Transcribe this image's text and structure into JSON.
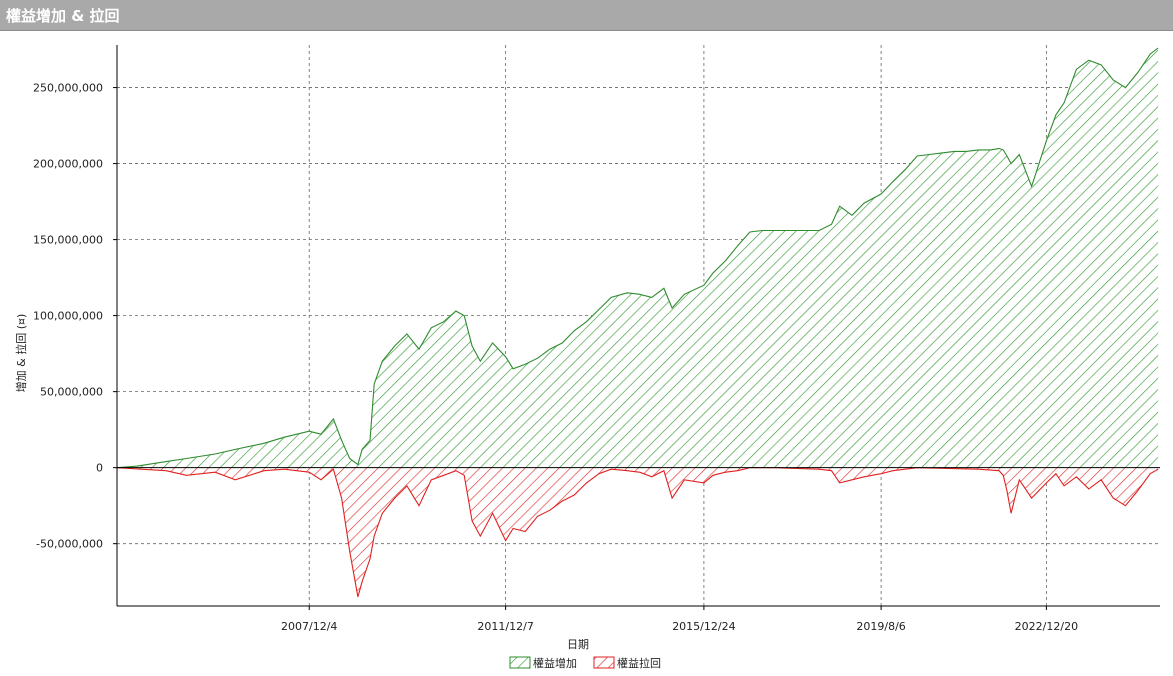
{
  "window": {
    "title": "權益增加 & 拉回"
  },
  "chart_data": {
    "type": "area",
    "title": "",
    "xlabel": "日期",
    "ylabel": "增加 & 拉回 (¤)",
    "ylim": [
      -91000000,
      278000000
    ],
    "xlim": [
      "2004/1/1",
      "2025/4/15"
    ],
    "grid": true,
    "yticks": [
      -50000000,
      0,
      50000000,
      100000000,
      150000000,
      200000000,
      250000000
    ],
    "ytick_labels": [
      "-50,000,000",
      "0",
      "50,000,000",
      "100,000,000",
      "150,000,000",
      "200,000,000",
      "250,000,000"
    ],
    "xticks": [
      "2007/12/4",
      "2011/12/7",
      "2015/12/24",
      "2019/8/6",
      "2022/12/20"
    ],
    "legend_position": "bottom-center",
    "series": [
      {
        "name": "權益增加",
        "color": "#2e8b2e",
        "x": [
          "2004/1/1",
          "2004/6/1",
          "2005/1/1",
          "2005/6/1",
          "2006/1/1",
          "2006/6/1",
          "2007/1/1",
          "2007/6/1",
          "2007/12/4",
          "2008/3/1",
          "2008/6/1",
          "2008/8/1",
          "2008/10/1",
          "2008/12/1",
          "2009/1/1",
          "2009/3/1",
          "2009/4/1",
          "2009/6/1",
          "2009/9/1",
          "2009/12/1",
          "2010/3/1",
          "2010/6/1",
          "2010/9/1",
          "2010/12/1",
          "2011/2/1",
          "2011/4/1",
          "2011/6/1",
          "2011/9/1",
          "2011/12/7",
          "2012/2/1",
          "2012/5/1",
          "2012/8/1",
          "2012/11/1",
          "2013/2/1",
          "2013/5/1",
          "2013/8/1",
          "2013/11/1",
          "2014/2/1",
          "2014/6/1",
          "2014/9/1",
          "2014/12/1",
          "2015/3/1",
          "2015/5/1",
          "2015/8/1",
          "2015/12/24",
          "2016/3/1",
          "2016/6/1",
          "2016/9/1",
          "2016/12/1",
          "2017/3/1",
          "2017/6/1",
          "2017/9/1",
          "2017/12/1",
          "2018/2/1",
          "2018/5/1",
          "2018/8/1",
          "2018/10/1",
          "2019/1/1",
          "2019/4/1",
          "2019/8/6",
          "2019/11/1",
          "2020/2/1",
          "2020/5/1",
          "2020/8/1",
          "2020/11/1",
          "2021/2/1",
          "2021/5/1",
          "2021/8/1",
          "2021/11/1",
          "2022/1/1",
          "2022/2/1",
          "2022/3/1",
          "2022/4/1",
          "2022/6/1",
          "2022/9/1",
          "2022/12/20",
          "2023/3/1",
          "2023/5/1",
          "2023/8/1",
          "2023/11/1",
          "2024/2/1",
          "2024/5/1",
          "2024/8/1",
          "2024/11/1",
          "2025/2/1",
          "2025/4/1"
        ],
        "values": [
          0,
          1000000,
          4000000,
          6000000,
          9000000,
          12000000,
          16000000,
          20000000,
          24000000,
          22000000,
          32000000,
          18000000,
          6000000,
          2000000,
          12000000,
          18000000,
          55000000,
          70000000,
          80000000,
          88000000,
          78000000,
          92000000,
          96000000,
          103000000,
          100000000,
          80000000,
          70000000,
          82000000,
          73000000,
          65000000,
          68000000,
          72000000,
          78000000,
          82000000,
          90000000,
          96000000,
          104000000,
          112000000,
          115000000,
          114000000,
          112000000,
          118000000,
          105000000,
          114000000,
          120000000,
          128000000,
          136000000,
          146000000,
          155000000,
          156000000,
          156000000,
          156000000,
          156000000,
          156000000,
          156000000,
          160000000,
          172000000,
          166000000,
          174000000,
          180000000,
          188000000,
          196000000,
          205000000,
          206000000,
          207000000,
          208000000,
          208000000,
          209000000,
          209000000,
          210000000,
          209000000,
          205000000,
          200000000,
          206000000,
          185000000,
          215000000,
          232000000,
          240000000,
          262000000,
          268000000,
          265000000,
          255000000,
          250000000,
          260000000,
          272000000,
          276000000
        ]
      },
      {
        "name": "權益拉回",
        "color": "#e02020",
        "x": [
          "2004/1/1",
          "2005/1/1",
          "2005/6/1",
          "2006/1/1",
          "2006/6/1",
          "2007/1/1",
          "2007/6/1",
          "2007/12/4",
          "2008/3/1",
          "2008/6/1",
          "2008/8/1",
          "2008/10/1",
          "2008/12/1",
          "2009/1/1",
          "2009/3/1",
          "2009/4/1",
          "2009/6/1",
          "2009/9/1",
          "2009/12/1",
          "2010/3/1",
          "2010/6/1",
          "2010/9/1",
          "2010/12/1",
          "2011/2/1",
          "2011/4/1",
          "2011/6/1",
          "2011/9/1",
          "2011/12/7",
          "2012/2/1",
          "2012/5/1",
          "2012/8/1",
          "2012/11/1",
          "2013/2/1",
          "2013/5/1",
          "2013/8/1",
          "2013/11/1",
          "2014/2/1",
          "2014/6/1",
          "2014/9/1",
          "2014/12/1",
          "2015/3/1",
          "2015/5/1",
          "2015/8/1",
          "2015/12/24",
          "2016/3/1",
          "2016/6/1",
          "2016/9/1",
          "2016/12/1",
          "2017/6/1",
          "2018/5/1",
          "2018/8/1",
          "2018/10/1",
          "2019/1/1",
          "2019/4/1",
          "2019/8/6",
          "2019/11/1",
          "2020/5/1",
          "2021/8/1",
          "2022/1/1",
          "2022/2/1",
          "2022/3/1",
          "2022/4/1",
          "2022/6/1",
          "2022/9/1",
          "2022/12/20",
          "2023/3/1",
          "2023/5/1",
          "2023/8/1",
          "2023/11/1",
          "2024/2/1",
          "2024/5/1",
          "2024/8/1",
          "2024/11/1",
          "2025/2/1",
          "2025/4/1"
        ],
        "values": [
          0,
          -2000000,
          -5000000,
          -3000000,
          -8000000,
          -2000000,
          -1000000,
          -3000000,
          -8000000,
          -1000000,
          -20000000,
          -55000000,
          -85000000,
          -75000000,
          -60000000,
          -45000000,
          -30000000,
          -20000000,
          -12000000,
          -25000000,
          -8000000,
          -5000000,
          -2000000,
          -5000000,
          -35000000,
          -45000000,
          -30000000,
          -48000000,
          -40000000,
          -42000000,
          -32000000,
          -28000000,
          -22000000,
          -18000000,
          -10000000,
          -4000000,
          -1000000,
          -2000000,
          -3000000,
          -6000000,
          -2000000,
          -20000000,
          -8000000,
          -10000000,
          -5000000,
          -3000000,
          -2000000,
          0,
          0,
          -1000000,
          -2000000,
          -10000000,
          -8000000,
          -6000000,
          -4000000,
          -2000000,
          0,
          -1000000,
          -2000000,
          -5000000,
          -15000000,
          -30000000,
          -8000000,
          -20000000,
          -10000000,
          -4000000,
          -12000000,
          -6000000,
          -14000000,
          -8000000,
          -20000000,
          -25000000,
          -15000000,
          -4000000,
          -1000000
        ]
      }
    ]
  }
}
